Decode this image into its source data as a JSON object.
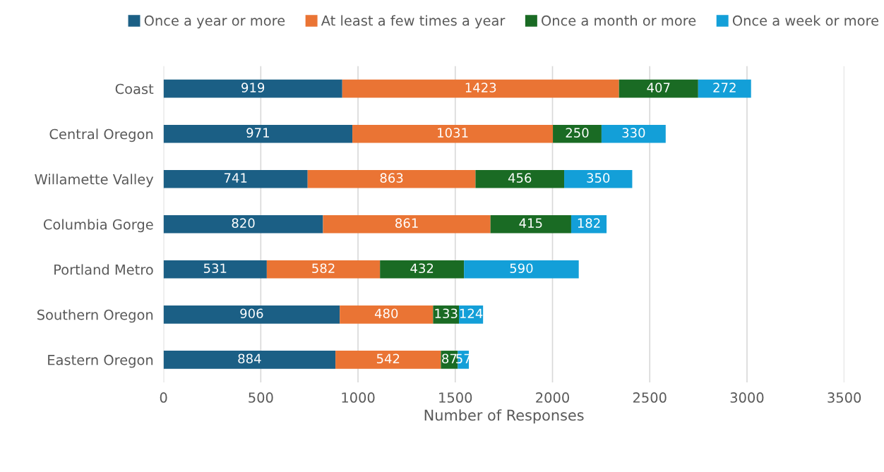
{
  "chart_data": {
    "type": "bar",
    "orientation": "horizontal",
    "stacked": true,
    "xlabel": "Number of Responses",
    "categories": [
      "Coast",
      "Central Oregon",
      "Willamette Valley",
      "Columbia Gorge",
      "Portland Metro",
      "Southern Oregon",
      "Eastern Oregon"
    ],
    "series": [
      {
        "name": "Once a year or more",
        "color": "#1b5f85",
        "values": [
          919,
          971,
          741,
          820,
          531,
          906,
          884
        ]
      },
      {
        "name": "At least a few times a year",
        "color": "#ea7434",
        "values": [
          1423,
          1031,
          863,
          861,
          582,
          480,
          542
        ]
      },
      {
        "name": "Once a month or more",
        "color": "#1a6b24",
        "values": [
          407,
          250,
          456,
          415,
          432,
          133,
          87
        ]
      },
      {
        "name": "Once a week or more",
        "color": "#139fd8",
        "values": [
          272,
          330,
          350,
          182,
          590,
          124,
          57
        ]
      }
    ],
    "xlim": [
      0,
      3500
    ],
    "xticks": [
      0,
      500,
      1000,
      1500,
      2000,
      2500,
      3000,
      3500
    ],
    "grid": "x",
    "legend": "top",
    "data_labels": true
  }
}
